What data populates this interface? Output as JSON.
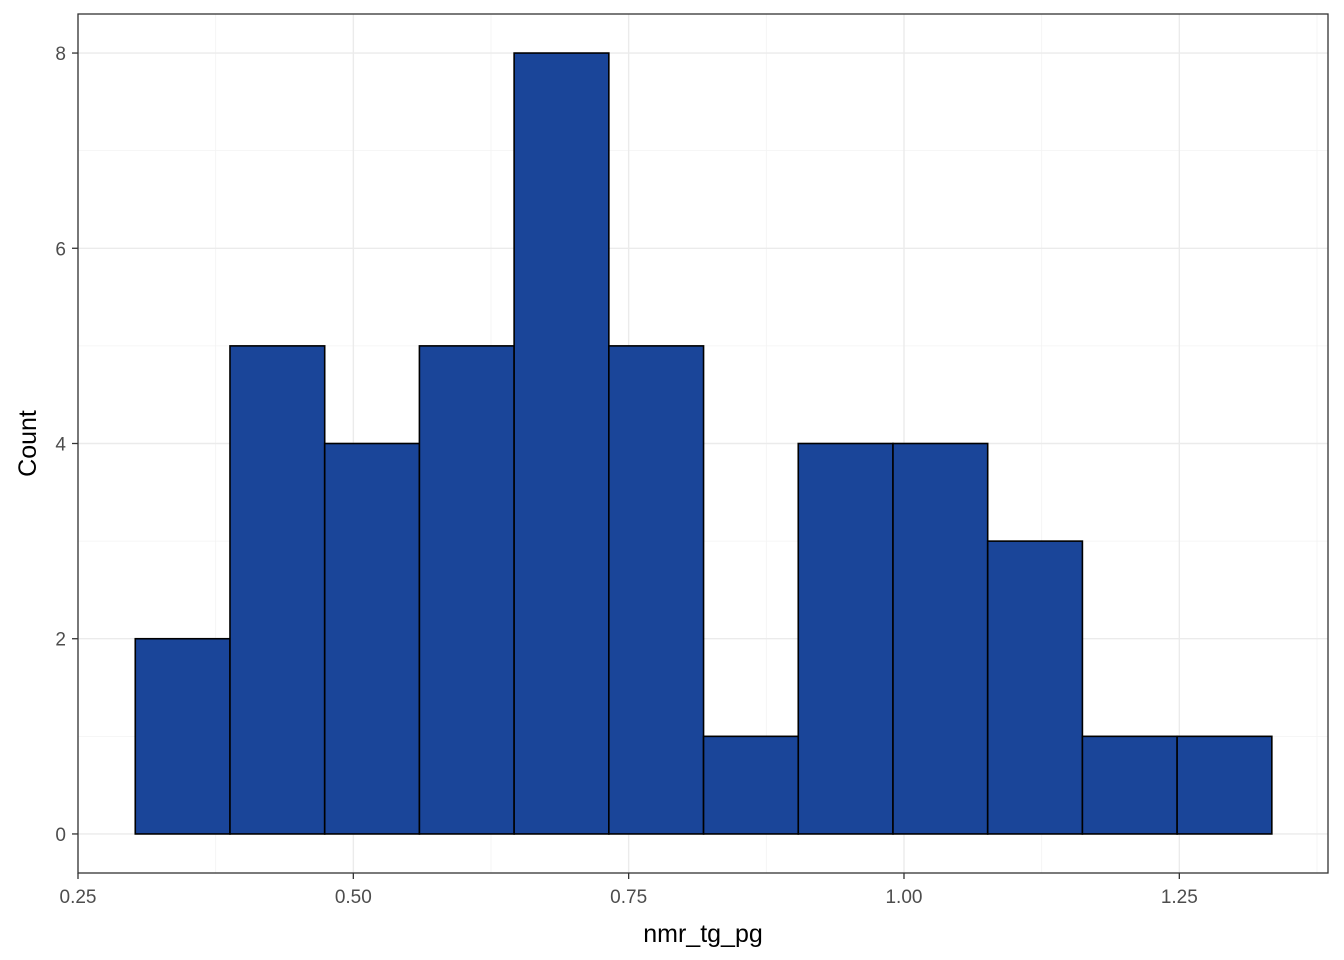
{
  "chart_data": {
    "type": "bar",
    "subtype": "histogram",
    "bins": [
      {
        "x0": 0.302,
        "x1": 0.388,
        "count": 2
      },
      {
        "x0": 0.388,
        "x1": 0.474,
        "count": 5
      },
      {
        "x0": 0.474,
        "x1": 0.56,
        "count": 4
      },
      {
        "x0": 0.56,
        "x1": 0.646,
        "count": 5
      },
      {
        "x0": 0.646,
        "x1": 0.732,
        "count": 8
      },
      {
        "x0": 0.732,
        "x1": 0.818,
        "count": 5
      },
      {
        "x0": 0.818,
        "x1": 0.904,
        "count": 1
      },
      {
        "x0": 0.904,
        "x1": 0.99,
        "count": 4
      },
      {
        "x0": 0.99,
        "x1": 1.076,
        "count": 4
      },
      {
        "x0": 1.076,
        "x1": 1.162,
        "count": 3
      },
      {
        "x0": 1.162,
        "x1": 1.248,
        "count": 1
      },
      {
        "x0": 1.248,
        "x1": 1.334,
        "count": 1
      }
    ],
    "xlabel": "nmr_tg_pg",
    "ylabel": "Count",
    "xlim": [
      0.25,
      1.385
    ],
    "ylim": [
      -0.4,
      8.4
    ],
    "x_ticks": [
      0.25,
      0.5,
      0.75,
      1.0,
      1.25
    ],
    "x_tick_labels": [
      "0.25",
      "0.50",
      "0.75",
      "1.00",
      "1.25"
    ],
    "y_ticks": [
      0,
      2,
      4,
      6,
      8
    ],
    "y_tick_labels": [
      "0",
      "2",
      "4",
      "6",
      "8"
    ],
    "grid": true,
    "bar_color": "#1a4599",
    "bar_outline": "#000000",
    "panel_border": "#333333"
  }
}
